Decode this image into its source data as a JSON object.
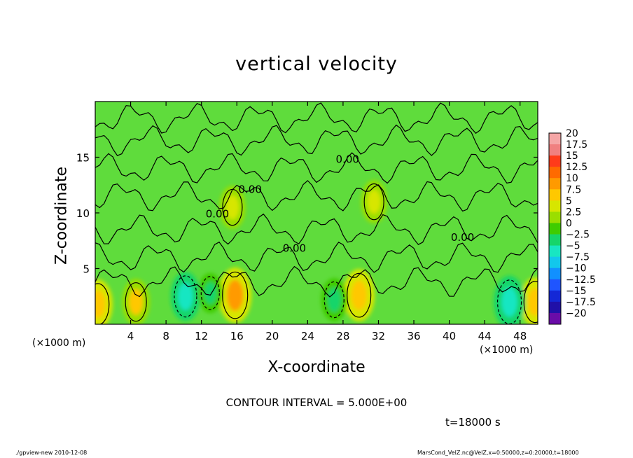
{
  "header": {
    "title": "vertical velocity"
  },
  "axes": {
    "xlabel": "X-coordinate",
    "ylabel": "Z-coordinate",
    "x_unit_left": "(×1000 m)",
    "x_unit_right": "(×1000 m)"
  },
  "annotations": {
    "contour_interval": "CONTOUR INTERVAL = 5.000E+00",
    "time": "t=18000 s",
    "footer_left": "./gpview-new  2010-12-08",
    "footer_right": "MarsCond_VelZ.nc@VelZ,x=0:50000,z=0:20000,t=18000",
    "contour_label": "0.00"
  },
  "chart_data": {
    "type": "heatmap",
    "title": "vertical velocity",
    "xlabel": "X-coordinate",
    "ylabel": "Z-coordinate",
    "xlim": [
      0,
      50
    ],
    "ylim": [
      0,
      20
    ],
    "x_ticks": [
      4,
      8,
      12,
      16,
      20,
      24,
      28,
      32,
      36,
      40,
      44,
      48
    ],
    "y_ticks": [
      5,
      10,
      15
    ],
    "colorbar": {
      "levels": [
        "20",
        "17.5",
        "15",
        "12.5",
        "10",
        "7.5",
        "5",
        "2.5",
        "0",
        "−2.5",
        "−5",
        "−7.5",
        "−10",
        "−12.5",
        "−15",
        "−17.5",
        "−20"
      ],
      "colors": [
        "#f5a6a6",
        "#f08080",
        "#ff3b1a",
        "#ff6a00",
        "#ff9a00",
        "#ffc800",
        "#d7e600",
        "#9ade00",
        "#3fcc00",
        "#16d56a",
        "#18e6c2",
        "#12c7ec",
        "#1190ff",
        "#1f55ff",
        "#1428d6",
        "#2010a8",
        "#6a0ca8"
      ]
    },
    "field_background": "#5fdc3c",
    "updrafts": [
      {
        "x": 0.3,
        "z": 1.8,
        "w": 6
      },
      {
        "x": 4.6,
        "z": 2.0,
        "w": 5
      },
      {
        "x": 15.8,
        "z": 2.6,
        "w": 8
      },
      {
        "x": 29.8,
        "z": 2.6,
        "w": 7
      },
      {
        "x": 15.5,
        "z": 10.5,
        "w": 4
      },
      {
        "x": 31.5,
        "z": 11.0,
        "w": 4
      },
      {
        "x": 49.7,
        "z": 2.0,
        "w": 6
      }
    ],
    "downdrafts": [
      {
        "x": 10.2,
        "z": 2.5,
        "w": -6
      },
      {
        "x": 13.0,
        "z": 2.8,
        "w": -3
      },
      {
        "x": 27.0,
        "z": 2.2,
        "w": -4
      },
      {
        "x": 46.8,
        "z": 2.0,
        "w": -7
      }
    ],
    "contour_labels": [
      {
        "x": 13.8,
        "z": 9.6,
        "text": "0.00"
      },
      {
        "x": 17.5,
        "z": 11.8,
        "text": "0.00"
      },
      {
        "x": 22.5,
        "z": 6.5,
        "text": "0.00"
      },
      {
        "x": 28.5,
        "z": 14.5,
        "text": "0.00"
      },
      {
        "x": 41.5,
        "z": 7.5,
        "text": "0.00"
      }
    ]
  }
}
